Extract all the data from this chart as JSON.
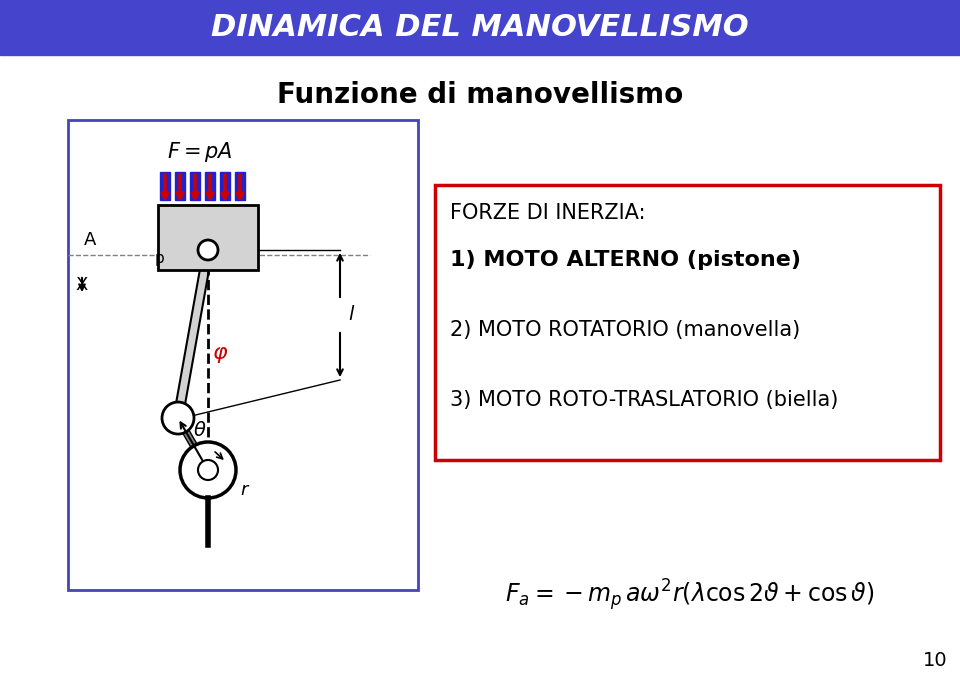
{
  "title_banner": "DINAMICA DEL MANOVELLISMO",
  "title_banner_bg": "#4444cc",
  "subtitle": "Funzione di manovellismo",
  "bg_color": "#ffffff",
  "box_right_title": "FORZE DI INERZIA:",
  "box_right_items": [
    "1) MOTO ALTERNO (pistone)",
    "2) MOTO ROTATORIO (manovella)",
    "3) MOTO ROTO-TRASLATORIO (biella)"
  ],
  "formula": "$F_a = -m_p a\\omega^2 r(\\lambda\\cos 2\\vartheta + \\cos\\vartheta)$",
  "page_number": "10",
  "arrow_color_red": "#cc0000",
  "arrow_color_blue": "#2222cc",
  "phi_color": "#cc0000",
  "diagram_box_color": "#4444bb"
}
